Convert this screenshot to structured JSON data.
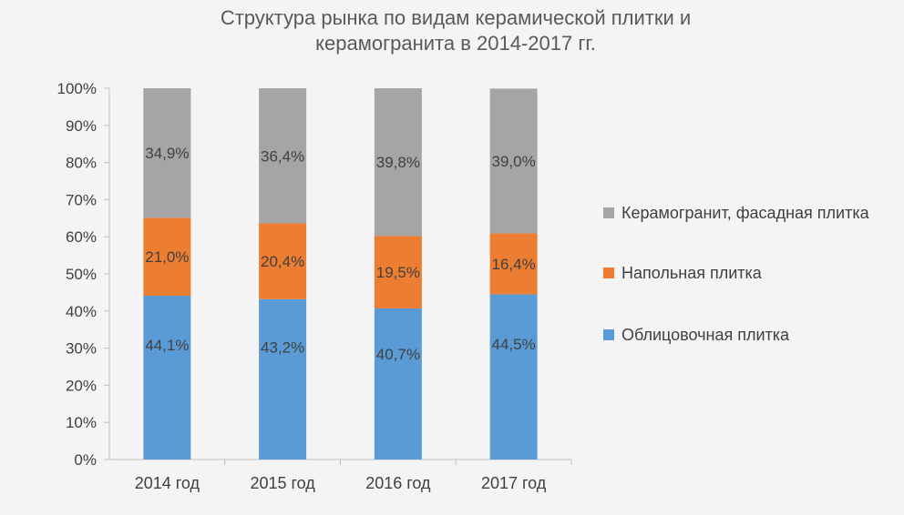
{
  "title_line1": "Структура рынка по видам керамической плитки и",
  "title_line2": "керамогранита в 2014-2017 гг.",
  "chart_data": {
    "type": "bar",
    "stacked": true,
    "categories": [
      "2014 год",
      "2015 год",
      "2016 год",
      "2017 год"
    ],
    "series": [
      {
        "name": "Облицовочная плитка",
        "color": "#5b9bd5",
        "values": [
          44.1,
          43.2,
          40.7,
          44.5
        ],
        "labels": [
          "44,1%",
          "43,2%",
          "40,7%",
          "44,5%"
        ]
      },
      {
        "name": "Напольная плитка",
        "color": "#ed7d31",
        "values": [
          21.0,
          20.4,
          19.5,
          16.4
        ],
        "labels": [
          "21,0%",
          "20,4%",
          "19,5%",
          "16,4%"
        ]
      },
      {
        "name": "Керамогранит, фасадная плитка",
        "color": "#a5a5a5",
        "values": [
          34.9,
          36.4,
          39.8,
          39.0
        ],
        "labels": [
          "34,9%",
          "36,4%",
          "39,8%",
          "39,0%"
        ]
      }
    ],
    "ylim": [
      0,
      100
    ],
    "yticks": [
      "0%",
      "10%",
      "20%",
      "30%",
      "40%",
      "50%",
      "60%",
      "70%",
      "80%",
      "90%",
      "100%"
    ],
    "grid": false,
    "legend_position": "right"
  }
}
